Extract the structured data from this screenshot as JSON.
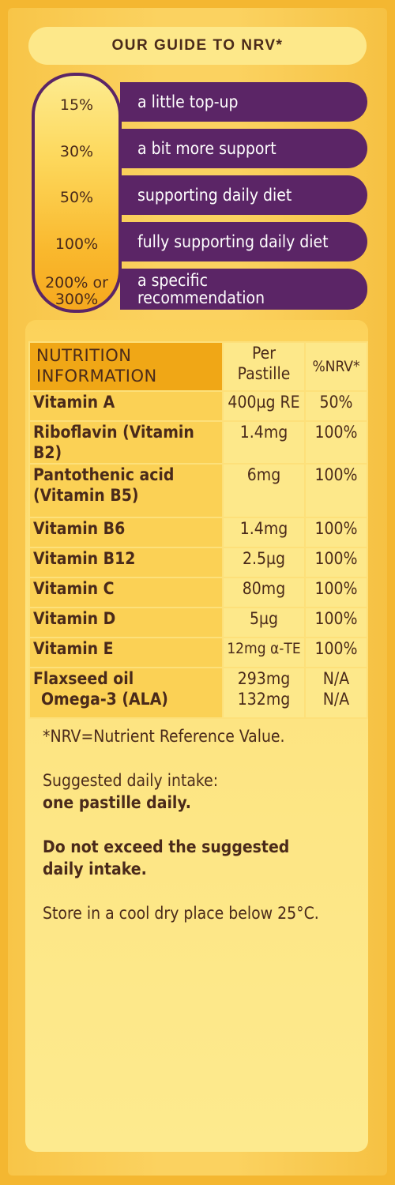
{
  "guide": {
    "title": "OUR GUIDE TO NRV*",
    "levels": [
      {
        "pct": "15%",
        "label": "a little top-up"
      },
      {
        "pct": "30%",
        "label": "a bit more support"
      },
      {
        "pct": "50%",
        "label": "supporting daily diet"
      },
      {
        "pct": "100%",
        "label": "fully supporting daily diet"
      },
      {
        "pct_line1": "200% or",
        "pct_line2": "300%",
        "label_line1": "a specific",
        "label_line2": "recommendation"
      }
    ]
  },
  "nutrition": {
    "header_line1": "NUTRITION",
    "header_line2": "INFORMATION",
    "col_amount_line1": "Per",
    "col_amount_line2": "Pastille",
    "col_nrv": "%NRV*",
    "rows": [
      {
        "name": "Vitamin A",
        "amount": "400µg RE",
        "nrv": "50%"
      },
      {
        "name": "Riboflavin (Vitamin B2)",
        "amount": "1.4mg",
        "nrv": "100%"
      },
      {
        "name_line1": "Pantothenic acid",
        "name_line2": "(Vitamin B5)",
        "amount": "6mg",
        "nrv": "100%"
      },
      {
        "name": "Vitamin B6",
        "amount": "1.4mg",
        "nrv": "100%"
      },
      {
        "name": "Vitamin B12",
        "amount": "2.5µg",
        "nrv": "100%"
      },
      {
        "name": "Vitamin C",
        "amount": "80mg",
        "nrv": "100%"
      },
      {
        "name": "Vitamin D",
        "amount": "5µg",
        "nrv": "100%"
      },
      {
        "name": "Vitamin E",
        "amount": "12mg α-TE",
        "nrv": "100%"
      },
      {
        "name_line1": "Flaxseed oil",
        "name_line2": "Omega-3 (ALA)",
        "amount_line1": "293mg",
        "amount_line2": "132mg",
        "nrv_line1": "N/A",
        "nrv_line2": "N/A"
      }
    ]
  },
  "notes": {
    "nrv_def": "*NRV=Nutrient Reference Value.",
    "intake_label": "Suggested daily intake:",
    "intake_value": "one pastille daily.",
    "warning_line1": "Do not exceed the suggested",
    "warning_line2": "daily intake.",
    "storage": "Store in a cool dry place below 25°C."
  }
}
